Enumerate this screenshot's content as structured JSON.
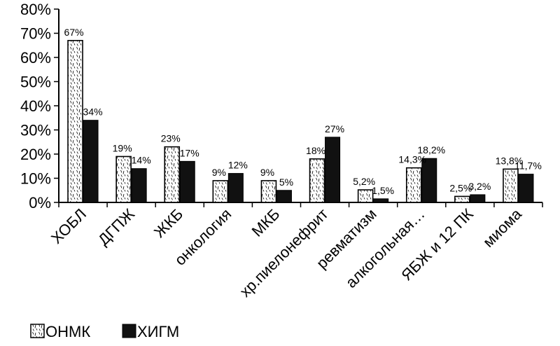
{
  "chart_data": {
    "type": "bar",
    "title": "",
    "xlabel": "",
    "ylabel": "",
    "ylim": [
      0,
      80
    ],
    "yticks": [
      "0%",
      "10%",
      "20%",
      "30%",
      "40%",
      "50%",
      "60%",
      "70%",
      "80%"
    ],
    "categories": [
      "ХОБЛ",
      "ДГПЖ",
      "ЖКБ",
      "онкология",
      "МКБ",
      "хр.пиелонефрит",
      "ревматизм",
      "алкогольная…",
      "ЯБЖ и 12 ПК",
      "миома"
    ],
    "series": [
      {
        "name": "ОНМК",
        "pattern": "hatched",
        "values": [
          67,
          19,
          23,
          9,
          9,
          18,
          5.2,
          14.3,
          2.5,
          13.8
        ],
        "labels": [
          "67%",
          "19%",
          "23%",
          "9%",
          "9%",
          "18%",
          "5,2%",
          "14,3%",
          "2,5%",
          "13,8%"
        ]
      },
      {
        "name": "ХИГМ",
        "color": "#111111",
        "values": [
          34,
          14,
          17,
          12,
          5,
          27,
          1.5,
          18.2,
          3.2,
          11.7
        ],
        "labels": [
          "34%",
          "14%",
          "17%",
          "12%",
          "5%",
          "27%",
          "1,5%",
          "18,2%",
          "3,2%",
          "11,7%"
        ]
      }
    ],
    "grid": false,
    "legend_position": "bottom-left"
  }
}
